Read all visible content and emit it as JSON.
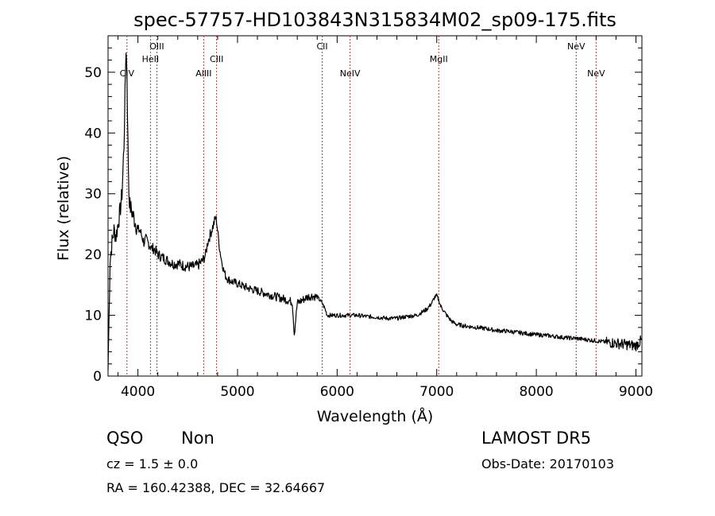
{
  "chart_data": {
    "type": "line",
    "title": "spec-57757-HD103843N315834M02_sp09-175.fits",
    "xlabel": "Wavelength (Å)",
    "ylabel": "Flux (relative)",
    "xlim": [
      3700,
      9060
    ],
    "ylim": [
      0,
      56
    ],
    "xticks": [
      4000,
      5000,
      6000,
      7000,
      8000,
      9000
    ],
    "yticks": [
      0,
      10,
      20,
      30,
      40,
      50
    ],
    "grid": false,
    "line_color": "#000000",
    "marker_color": "#b03a2e",
    "series": [
      {
        "x": [
          3700,
          3720,
          3740,
          3760,
          3780,
          3800,
          3820,
          3840,
          3860,
          3870,
          3880,
          3890,
          3900,
          3910,
          3920,
          3940,
          3960,
          3980,
          4000,
          4020,
          4040,
          4060,
          4080,
          4100,
          4120,
          4140,
          4160,
          4180,
          4200,
          4250,
          4300,
          4350,
          4400,
          4450,
          4500,
          4550,
          4600,
          4650,
          4680,
          4700,
          4720,
          4740,
          4760,
          4780,
          4790,
          4800,
          4820,
          4840,
          4860,
          4880,
          4900,
          4950,
          5000,
          5100,
          5200,
          5300,
          5400,
          5500,
          5550,
          5570,
          5600,
          5650,
          5700,
          5750,
          5800,
          5850,
          5880,
          5900,
          5950,
          6000,
          6100,
          6200,
          6300,
          6400,
          6500,
          6600,
          6700,
          6800,
          6900,
          6950,
          6980,
          7000,
          7020,
          7040,
          7060,
          7080,
          7100,
          7150,
          7200,
          7300,
          7400,
          7500,
          7600,
          7700,
          7800,
          7900,
          8000,
          8100,
          8200,
          8300,
          8400,
          8500,
          8600,
          8700,
          8800,
          8900,
          8980,
          9000,
          9030,
          9060
        ],
        "values": [
          1,
          19,
          22,
          24,
          23,
          25,
          27,
          30,
          38,
          46,
          54,
          50,
          38,
          30,
          28,
          27,
          26,
          25,
          24,
          24,
          23,
          22,
          22.5,
          22,
          21.5,
          21,
          21,
          20.5,
          20,
          19.5,
          19,
          18.5,
          18.5,
          18.2,
          18,
          18,
          18.2,
          19,
          20,
          22,
          23,
          24,
          25,
          26,
          25.5,
          24,
          21,
          19,
          17.5,
          16.5,
          16,
          15.5,
          15.2,
          14.5,
          14,
          13.5,
          13,
          12.5,
          12.2,
          7,
          12,
          12.5,
          13,
          13.2,
          13,
          12,
          11,
          10,
          10,
          10,
          10,
          10,
          9.8,
          9.7,
          9.5,
          9.5,
          9.8,
          10,
          11,
          12,
          13,
          13.2,
          12.5,
          11.5,
          11,
          10.5,
          10,
          9,
          8.5,
          8.2,
          8,
          7.8,
          7.5,
          7.4,
          7.2,
          7,
          6.8,
          6.7,
          6.5,
          6.3,
          6.2,
          6,
          5.8,
          5.6,
          5.4,
          5.2,
          5,
          5,
          5.5,
          6
        ]
      }
    ],
    "lines": [
      {
        "label": "CIV",
        "x": 3890,
        "row": 3
      },
      {
        "label": "HeII",
        "x": 4126,
        "row": 2
      },
      {
        "label": "OIII",
        "x": 4190,
        "row": 1
      },
      {
        "label": "AlIII",
        "x": 4660,
        "row": 3
      },
      {
        "label": "CIII",
        "x": 4790,
        "row": 2
      },
      {
        "label": "CII",
        "x": 5850,
        "row": 1
      },
      {
        "label": "NeIV",
        "x": 6130,
        "row": 3
      },
      {
        "label": "MgII",
        "x": 7020,
        "row": 2
      },
      {
        "label": "NeV",
        "x": 8400,
        "row": 1
      },
      {
        "label": "NeV",
        "x": 8600,
        "row": 3
      }
    ]
  },
  "info": {
    "class": "QSO",
    "subclass": "Non",
    "cz": "cz = 1.5 ± 0.0",
    "radec": "RA = 160.42388, DEC =  32.64667",
    "survey": "LAMOST DR5",
    "obsdate": "Obs-Date: 20170103"
  }
}
